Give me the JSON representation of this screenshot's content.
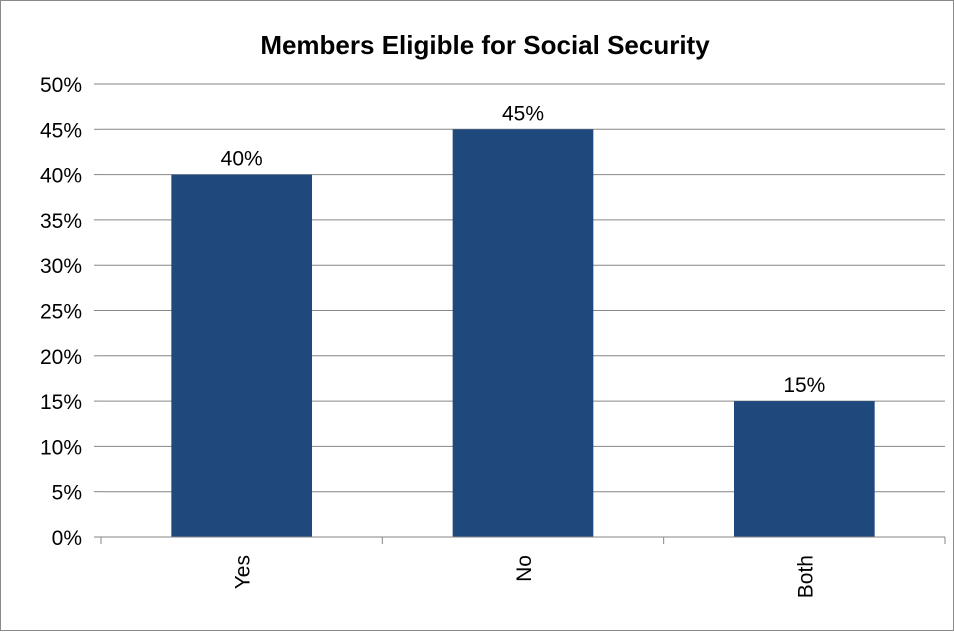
{
  "chart_data": {
    "type": "bar",
    "title": "Members Eligible for Social Security",
    "categories": [
      "Yes",
      "No",
      "Both"
    ],
    "values": [
      40,
      45,
      15
    ],
    "data_labels": [
      "40%",
      "45%",
      "15%"
    ],
    "ylim": [
      0,
      50
    ],
    "yticks": [
      0,
      5,
      10,
      15,
      20,
      25,
      30,
      35,
      40,
      45,
      50
    ],
    "ytick_labels": [
      "0%",
      "5%",
      "10%",
      "15%",
      "20%",
      "25%",
      "30%",
      "35%",
      "40%",
      "45%",
      "50%"
    ],
    "xlabel": "",
    "ylabel": "",
    "grid": true,
    "legend": "none",
    "bar_color": "#1F497D",
    "grid_color": "#868686"
  }
}
